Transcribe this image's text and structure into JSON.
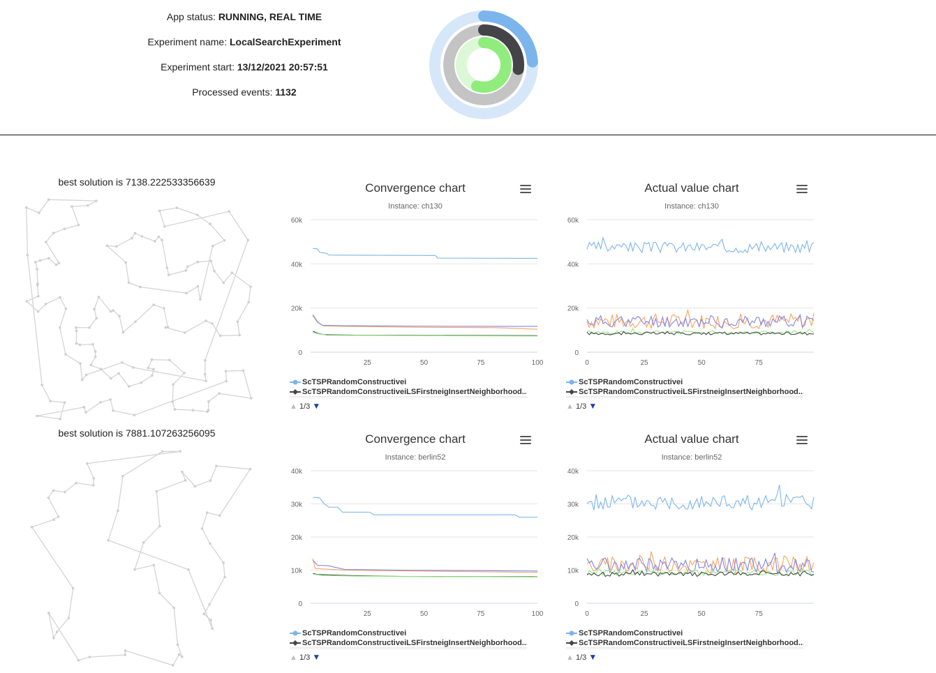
{
  "status": {
    "app_status_label": "App status: ",
    "app_status_value": "RUNNING, REAL TIME",
    "experiment_name_label": "Experiment name: ",
    "experiment_name_value": "LocalSearchExperiment",
    "experiment_start_label": "Experiment start: ",
    "experiment_start_value": "13/12/2021 20:57:51",
    "processed_events_label": "Processed events: ",
    "processed_events_value": "1132"
  },
  "progress_rings": {
    "rings": [
      {
        "color": "#7cb5ec",
        "track": "#d6e7f9",
        "fraction": 0.24
      },
      {
        "color": "#434348",
        "track": "#c4c4c4",
        "fraction": 0.27
      },
      {
        "color": "#90ed7d",
        "track": "#dcf8d6",
        "fraction": 0.55
      }
    ]
  },
  "instances": [
    {
      "best_text": "best solution is 7138.222533356639",
      "convergence": {
        "title": "Convergence chart",
        "subtitle": "Instance: ch130",
        "chart_data": {
          "type": "line",
          "ylim": [
            0,
            60000
          ],
          "xlim": [
            0,
            100
          ],
          "yticks": [
            "60k",
            "40k",
            "20k",
            "0"
          ],
          "ytick_values": [
            60000,
            40000,
            20000,
            0
          ],
          "xticks": [
            "25",
            "50",
            "75",
            "100"
          ],
          "xtick_values": [
            25,
            50,
            75,
            100
          ],
          "series": [
            {
              "color": "#7cb5ec",
              "points": [
                [
                  1,
                  47000
                ],
                [
                  3,
                  46800
                ],
                [
                  4,
                  45200
                ],
                [
                  7,
                  44800
                ],
                [
                  8,
                  44000
                ],
                [
                  20,
                  43900
                ],
                [
                  55,
                  43800
                ],
                [
                  56,
                  42600
                ],
                [
                  100,
                  42500
                ]
              ]
            },
            {
              "color": "#434348",
              "points": [
                [
                  1,
                  9500
                ],
                [
                  3,
                  8600
                ],
                [
                  6,
                  7900
                ],
                [
                  20,
                  7700
                ],
                [
                  50,
                  7600
                ],
                [
                  100,
                  7500
                ]
              ]
            },
            {
              "color": "#90ed7d",
              "points": [
                [
                  1,
                  9000
                ],
                [
                  3,
                  8400
                ],
                [
                  7,
                  7700
                ],
                [
                  40,
                  7500
                ],
                [
                  100,
                  7300
                ]
              ]
            },
            {
              "color": "#f7a35c",
              "points": [
                [
                  1,
                  16500
                ],
                [
                  3,
                  13500
                ],
                [
                  6,
                  11800
                ],
                [
                  25,
                  11600
                ],
                [
                  45,
                  11300
                ],
                [
                  80,
                  11100
                ],
                [
                  85,
                  11000
                ],
                [
                  100,
                  10400
                ]
              ]
            },
            {
              "color": "#8085e9",
              "points": [
                [
                  1,
                  17000
                ],
                [
                  3,
                  13800
                ],
                [
                  5,
                  12200
                ],
                [
                  15,
                  12000
                ],
                [
                  45,
                  11800
                ],
                [
                  85,
                  11700
                ],
                [
                  100,
                  11700
                ]
              ]
            }
          ]
        },
        "legend": {
          "items": [
            "ScTSPRandomConstructivei",
            "ScTSPRandomConstructiveiLSFirstneigInsertNeighborhood..."
          ],
          "pager": "1/3"
        }
      },
      "actual": {
        "title": "Actual value chart",
        "subtitle": "Instance: ch130",
        "chart_data": {
          "type": "line",
          "ylim": [
            0,
            60000
          ],
          "xlim": [
            0,
            99
          ],
          "yticks": [
            "60k",
            "40k",
            "20k",
            "0"
          ],
          "ytick_values": [
            60000,
            40000,
            20000,
            0
          ],
          "xticks": [
            "0",
            "25",
            "50",
            "75"
          ],
          "xtick_values": [
            0,
            25,
            50,
            75
          ],
          "series": [
            {
              "color": "#7cb5ec",
              "base": 47500,
              "amp": 2500,
              "seed": 3
            },
            {
              "color": "#f7a35c",
              "base": 14000,
              "amp": 3500,
              "seed": 7
            },
            {
              "color": "#8085e9",
              "base": 14000,
              "amp": 2800,
              "seed": 11
            },
            {
              "color": "#90ed7d",
              "base": 9000,
              "amp": 800,
              "seed": 13
            },
            {
              "color": "#434348",
              "base": 8500,
              "amp": 700,
              "seed": 17
            }
          ]
        },
        "legend": {
          "items": [
            "ScTSPRandomConstructivei",
            "ScTSPRandomConstructiveiLSFirstneigInsertNeighborhood..."
          ],
          "pager": "1/3"
        }
      }
    },
    {
      "best_text": "best solution is 7881.107263256095",
      "convergence": {
        "title": "Convergence chart",
        "subtitle": "Instance: berlin52",
        "chart_data": {
          "type": "line",
          "ylim": [
            0,
            40000
          ],
          "xlim": [
            0,
            100
          ],
          "yticks": [
            "40k",
            "30k",
            "20k",
            "10k",
            "0"
          ],
          "ytick_values": [
            40000,
            30000,
            20000,
            10000,
            0
          ],
          "xticks": [
            "25",
            "50",
            "75",
            "100"
          ],
          "xtick_values": [
            25,
            50,
            75,
            100
          ],
          "series": [
            {
              "color": "#7cb5ec",
              "points": [
                [
                  1,
                  32000
                ],
                [
                  4,
                  31800
                ],
                [
                  6,
                  30000
                ],
                [
                  8,
                  29000
                ],
                [
                  12,
                  29000
                ],
                [
                  14,
                  27500
                ],
                [
                  26,
                  27500
                ],
                [
                  28,
                  26700
                ],
                [
                  90,
                  26700
                ],
                [
                  92,
                  26000
                ],
                [
                  100,
                  26000
                ]
              ]
            },
            {
              "color": "#434348",
              "points": [
                [
                  1,
                  9000
                ],
                [
                  3,
                  8700
                ],
                [
                  15,
                  8400
                ],
                [
                  40,
                  8100
                ],
                [
                  100,
                  8000
                ]
              ]
            },
            {
              "color": "#90ed7d",
              "points": [
                [
                  1,
                  8800
                ],
                [
                  5,
                  8400
                ],
                [
                  20,
                  8200
                ],
                [
                  100,
                  7900
                ]
              ]
            },
            {
              "color": "#f7a35c",
              "points": [
                [
                  1,
                  13500
                ],
                [
                  2,
                  10500
                ],
                [
                  15,
                  10000
                ],
                [
                  50,
                  9700
                ],
                [
                  100,
                  9300
                ]
              ]
            },
            {
              "color": "#8085e9",
              "points": [
                [
                  1,
                  13000
                ],
                [
                  3,
                  11500
                ],
                [
                  8,
                  11300
                ],
                [
                  15,
                  10200
                ],
                [
                  40,
                  10000
                ],
                [
                  80,
                  9800
                ],
                [
                  100,
                  9700
                ]
              ]
            }
          ]
        },
        "legend": {
          "items": [
            "ScTSPRandomConstructivei",
            "ScTSPRandomConstructiveiLSFirstneigInsertNeighborhood..."
          ],
          "pager": "1/3"
        }
      },
      "actual": {
        "title": "Actual value chart",
        "subtitle": "Instance: berlin52",
        "chart_data": {
          "type": "line",
          "ylim": [
            0,
            40000
          ],
          "xlim": [
            0,
            99
          ],
          "yticks": [
            "40k",
            "30k",
            "20k",
            "10k",
            "0"
          ],
          "ytick_values": [
            40000,
            30000,
            20000,
            10000,
            0
          ],
          "xticks": [
            "0",
            "25",
            "50",
            "75"
          ],
          "xtick_values": [
            0,
            25,
            50,
            75
          ],
          "series": [
            {
              "color": "#7cb5ec",
              "base": 30500,
              "amp": 2500,
              "seed": 5
            },
            {
              "color": "#f7a35c",
              "base": 11500,
              "amp": 2500,
              "seed": 9
            },
            {
              "color": "#8085e9",
              "base": 11500,
              "amp": 2200,
              "seed": 19
            },
            {
              "color": "#90ed7d",
              "base": 9200,
              "amp": 900,
              "seed": 23
            },
            {
              "color": "#434348",
              "base": 8800,
              "amp": 700,
              "seed": 29
            }
          ]
        },
        "legend": {
          "items": [
            "ScTSPRandomConstructivei",
            "ScTSPRandomConstructiveiLSFirstneigInsertNeighborhood..."
          ],
          "pager": "1/3"
        }
      }
    }
  ]
}
